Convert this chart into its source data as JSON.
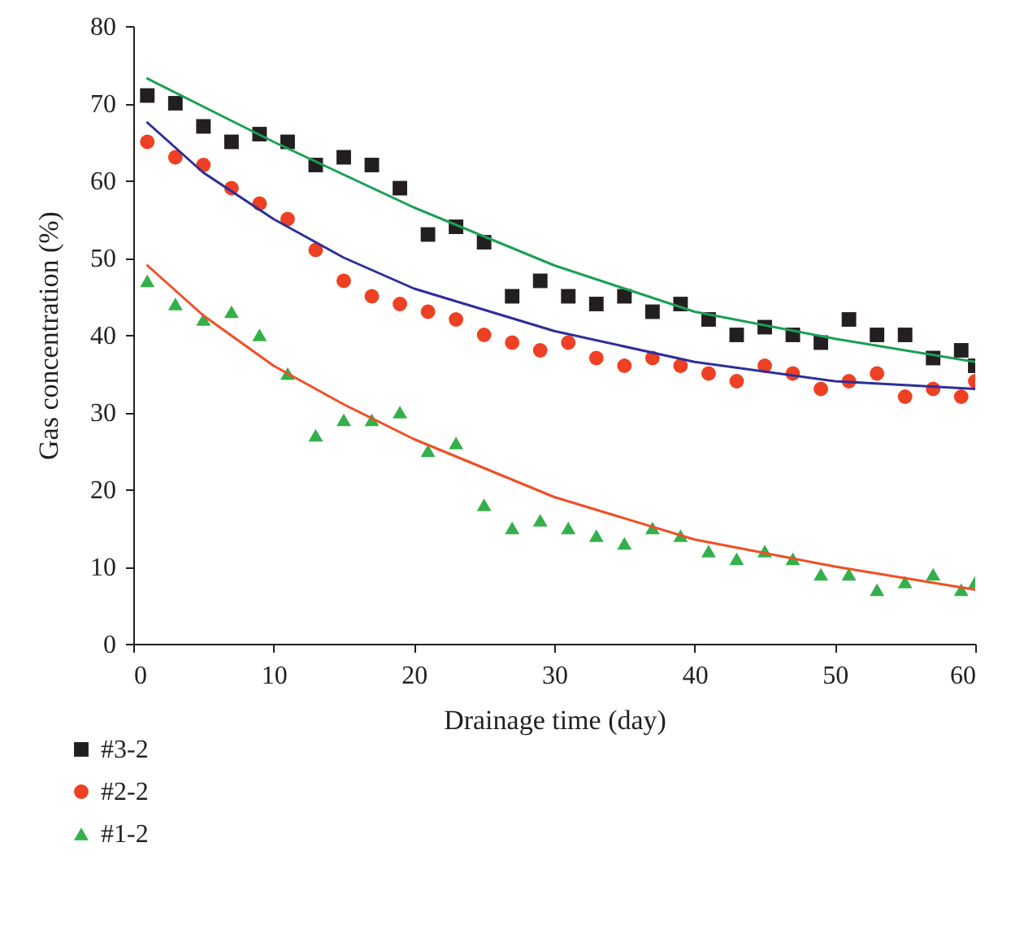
{
  "chart_data": {
    "type": "scatter",
    "xlabel": "Drainage time (day)",
    "ylabel": "Gas concentration (%)",
    "xlim": [
      0,
      60
    ],
    "xticks": [
      0,
      10,
      20,
      30,
      40,
      50,
      60
    ],
    "ylim": [
      0,
      80
    ],
    "yticks": [
      0,
      10,
      20,
      30,
      40,
      50,
      60,
      70,
      80
    ],
    "grid": false,
    "legend": "bottom left",
    "x": [
      1,
      3,
      5,
      7,
      9,
      11,
      13,
      15,
      17,
      19,
      21,
      23,
      25,
      27,
      29,
      31,
      33,
      35,
      37,
      39,
      41,
      43,
      45,
      47,
      49,
      51,
      53,
      55,
      57,
      59,
      60
    ],
    "series": [
      {
        "name": "#3-2",
        "color": "#231f20",
        "marker": "square",
        "values": [
          71,
          70,
          67,
          65,
          66,
          65,
          62,
          63,
          62,
          59,
          53,
          54,
          52,
          45,
          47,
          45,
          44,
          45,
          43,
          44,
          42,
          40,
          41,
          40,
          39,
          42,
          40,
          40,
          37,
          38,
          36
        ]
      },
      {
        "name": "#2-2",
        "color": "#ee4023",
        "marker": "circle",
        "values": [
          65,
          63,
          62,
          59,
          57,
          55,
          51,
          47,
          45,
          44,
          43,
          42,
          40,
          39,
          38,
          39,
          37,
          36,
          37,
          36,
          35,
          34,
          36,
          35,
          33,
          34,
          35,
          32,
          33,
          32,
          34
        ]
      },
      {
        "name": "#1-2",
        "color": "#33b04a",
        "marker": "triangle",
        "values": [
          47,
          44,
          42,
          43,
          40,
          35,
          27,
          29,
          29,
          30,
          25,
          26,
          18,
          15,
          16,
          15,
          14,
          13,
          15,
          14,
          12,
          11,
          12,
          11,
          9,
          9,
          7,
          8,
          9,
          7,
          8
        ]
      },
      {
        "type": "line",
        "color": "#1aa055",
        "x": [
          1,
          10,
          20,
          30,
          40,
          50,
          60
        ],
        "values": [
          73.2,
          65,
          56.5,
          49,
          43,
          39.5,
          36.5
        ]
      },
      {
        "type": "line",
        "color": "#2e2e9a",
        "x": [
          1,
          5,
          10,
          15,
          20,
          30,
          40,
          50,
          60
        ],
        "values": [
          67.5,
          61,
          55,
          50,
          46,
          40.5,
          36.5,
          34,
          33
        ]
      },
      {
        "type": "line",
        "color": "#f04e23",
        "x": [
          1,
          5,
          10,
          15,
          20,
          30,
          40,
          50,
          60
        ],
        "values": [
          49,
          42.5,
          36,
          31,
          26.5,
          19,
          13.5,
          10,
          7
        ]
      }
    ]
  }
}
